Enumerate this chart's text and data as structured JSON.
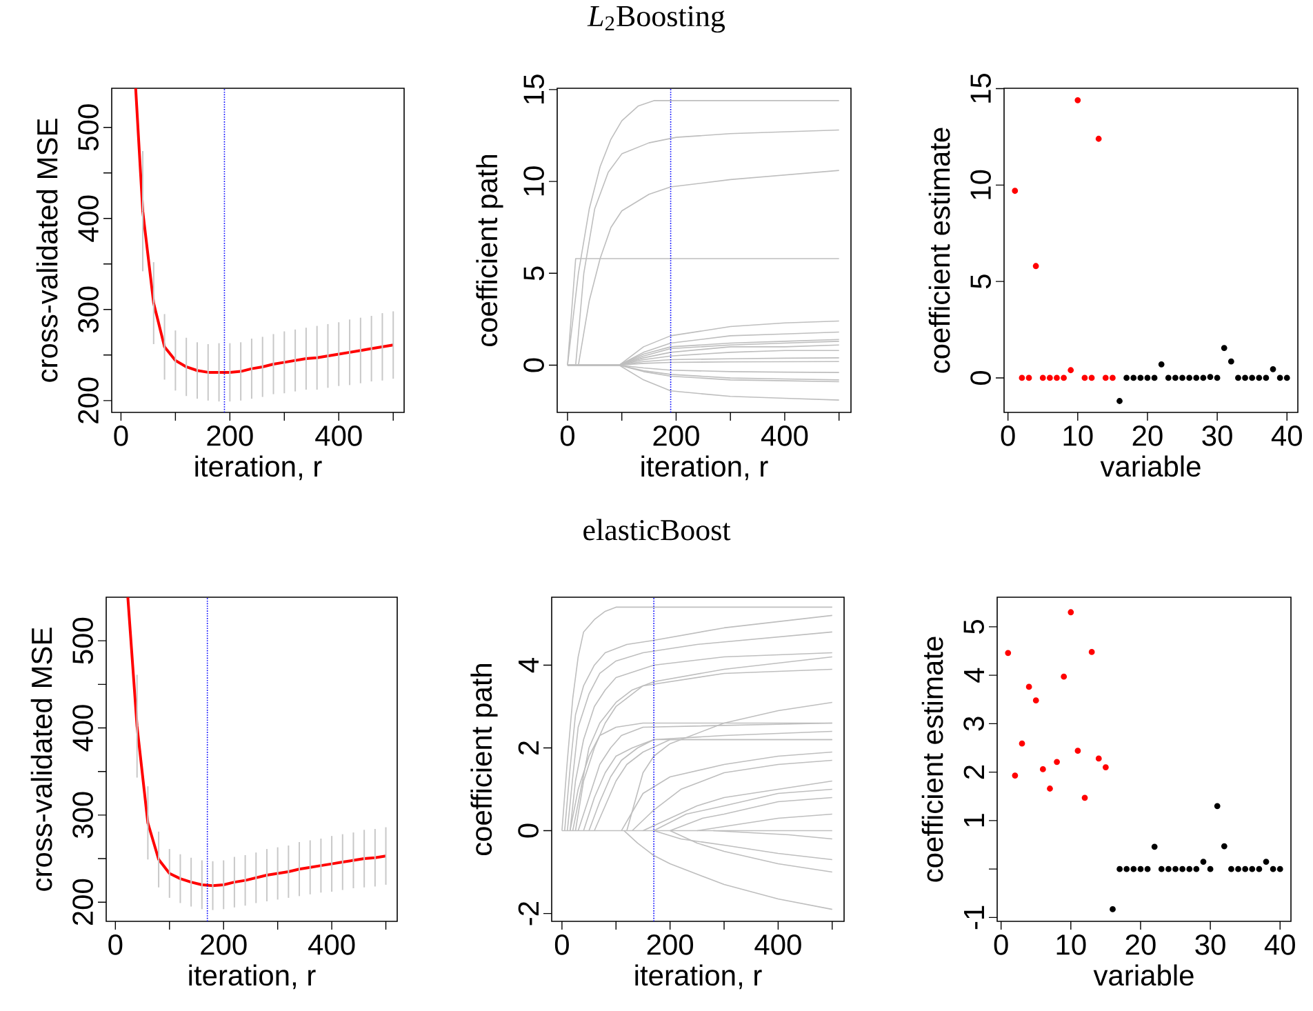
{
  "chart_data": [
    {
      "type": "line",
      "xlabel": "iteration, r",
      "ylabel": "cross-validated MSE",
      "xlim": [
        -17,
        520
      ],
      "ylim": [
        187,
        543
      ],
      "xticks": [
        0,
        {
          "value": 100,
          "label": null
        },
        200,
        {
          "value": 300,
          "label": null
        },
        400,
        {
          "value": 500,
          "label": null
        }
      ],
      "yticks": [
        200,
        {
          "value": 250,
          "label": null
        },
        300,
        {
          "value": 350,
          "label": null
        },
        400,
        {
          "value": 450,
          "label": null
        },
        500
      ],
      "series": [
        {
          "color": "#ff0000",
          "x": [
            27,
            40,
            60,
            80,
            100,
            120,
            140,
            160,
            180,
            200,
            220,
            240,
            260,
            280,
            300,
            320,
            340,
            360,
            380,
            400,
            420,
            440,
            460,
            480,
            500
          ],
          "values": [
            543,
            408,
            307,
            259,
            244,
            237,
            233,
            231,
            231,
            231,
            232,
            235,
            237,
            240,
            242,
            244,
            246,
            247,
            249,
            251,
            253,
            255,
            257,
            259,
            261
          ],
          "errors": [
            null,
            66,
            45,
            36,
            33,
            32,
            31,
            31,
            32,
            32,
            32,
            33,
            33,
            33,
            34,
            34,
            34,
            35,
            35,
            35,
            36,
            36,
            36,
            37,
            37
          ]
        }
      ],
      "ref_lines": [
        {
          "axis": "x",
          "value": 190,
          "color": "#0000ff",
          "line_style": "dotted"
        }
      ]
    },
    {
      "type": "line",
      "title": "*L*$_{2}$Boosting",
      "xlabel": "iteration, r",
      "ylabel": "coefficient path",
      "xlim": [
        -19,
        522
      ],
      "ylim": [
        -2.57,
        15.07
      ],
      "xticks": [
        0,
        {
          "value": 100,
          "label": null
        },
        200,
        {
          "value": 300,
          "label": null
        },
        400,
        {
          "value": 500,
          "label": null
        }
      ],
      "yticks": [
        0,
        5,
        10,
        15
      ],
      "series": [
        {
          "color": "#bebebe",
          "x": [
            0,
            20,
            40,
            60,
            80,
            100,
            130,
            160,
            500
          ],
          "values": [
            0,
            5,
            8.5,
            10.8,
            12.3,
            13.3,
            14.1,
            14.4,
            14.4
          ]
        },
        {
          "color": "#bebebe",
          "x": [
            15,
            30,
            50,
            75,
            100,
            150,
            200,
            300,
            500
          ],
          "values": [
            0,
            5,
            8.5,
            10.5,
            11.5,
            12.1,
            12.4,
            12.6,
            12.8
          ]
        },
        {
          "color": "#bebebe",
          "x": [
            20,
            40,
            60,
            80,
            100,
            150,
            190,
            300,
            500
          ],
          "values": [
            0,
            3.5,
            5.8,
            7.5,
            8.4,
            9.3,
            9.7,
            10.1,
            10.6
          ]
        },
        {
          "color": "#bebebe",
          "x": [
            0,
            15,
            500
          ],
          "values": [
            0,
            5.8,
            5.8
          ]
        },
        {
          "color": "#bebebe",
          "x": [
            0,
            95,
            140,
            190,
            300,
            400,
            500
          ],
          "values": [
            0,
            0,
            1.0,
            1.6,
            2.1,
            2.3,
            2.4
          ]
        },
        {
          "color": "#bebebe",
          "x": [
            0,
            95,
            140,
            190,
            300,
            400,
            500
          ],
          "values": [
            0,
            0,
            0.7,
            1.2,
            1.6,
            1.7,
            1.8
          ]
        },
        {
          "color": "#bebebe",
          "x": [
            0,
            95,
            140,
            190,
            300,
            400,
            500
          ],
          "values": [
            0,
            0,
            0.6,
            1.0,
            1.2,
            1.3,
            1.4
          ]
        },
        {
          "color": "#bebebe",
          "x": [
            0,
            95,
            140,
            190,
            300,
            400,
            500
          ],
          "values": [
            0,
            0,
            0.5,
            0.9,
            1.1,
            1.2,
            1.3
          ]
        },
        {
          "color": "#bebebe",
          "x": [
            0,
            95,
            140,
            190,
            300,
            400,
            500
          ],
          "values": [
            0,
            0,
            0.4,
            0.7,
            1.0,
            1.0,
            1.1
          ]
        },
        {
          "color": "#bebebe",
          "x": [
            0,
            95,
            140,
            190,
            300,
            400,
            500
          ],
          "values": [
            0,
            0,
            0.3,
            0.5,
            0.7,
            0.8,
            0.8
          ]
        },
        {
          "color": "#bebebe",
          "x": [
            0,
            95,
            140,
            190,
            300,
            400,
            500
          ],
          "values": [
            0,
            0,
            0.2,
            0.3,
            0.35,
            0.38,
            0.4
          ]
        },
        {
          "color": "#bebebe",
          "x": [
            0,
            95,
            140,
            190,
            300,
            400,
            500
          ],
          "values": [
            0,
            0,
            0.1,
            0.15,
            0.18,
            0.19,
            0.2
          ]
        },
        {
          "color": "#bebebe",
          "x": [
            0,
            95,
            140,
            190,
            300,
            400,
            500
          ],
          "values": [
            0,
            0,
            -0.15,
            -0.27,
            -0.35,
            -0.38,
            -0.4
          ]
        },
        {
          "color": "#bebebe",
          "x": [
            0,
            95,
            140,
            190,
            300,
            400,
            500
          ],
          "values": [
            0,
            0,
            -0.3,
            -0.5,
            -0.7,
            -0.75,
            -0.8
          ]
        },
        {
          "color": "#bebebe",
          "x": [
            0,
            95,
            140,
            190,
            300,
            400,
            500
          ],
          "values": [
            0,
            0,
            -0.35,
            -0.6,
            -0.8,
            -0.85,
            -0.9
          ]
        },
        {
          "color": "#bebebe",
          "x": [
            0,
            95,
            140,
            190,
            300,
            400,
            500
          ],
          "values": [
            0,
            0,
            -0.8,
            -1.4,
            -1.7,
            -1.8,
            -1.9
          ]
        }
      ],
      "ref_lines": [
        {
          "axis": "x",
          "value": 190,
          "color": "#0000ff",
          "line_style": "dotted"
        }
      ]
    },
    {
      "type": "scatter",
      "marker": "circle",
      "xlabel": "variable",
      "ylabel": "coefficient estimate",
      "xlim": [
        -0.56,
        41.56
      ],
      "ylim": [
        -1.79,
        15.02
      ],
      "xticks": [
        0,
        10,
        20,
        30,
        40
      ],
      "yticks": [
        0,
        5,
        10,
        15
      ],
      "series": [
        {
          "color": "#ff0000",
          "x": [
            1,
            2,
            3,
            4,
            5,
            6,
            7,
            8,
            9,
            10,
            11,
            12,
            13,
            14,
            15
          ],
          "values": [
            9.7,
            0,
            0,
            5.8,
            0,
            0,
            0,
            0,
            0.4,
            14.4,
            0,
            0,
            12.4,
            0,
            0
          ]
        },
        {
          "color": "#000000",
          "x": [
            16,
            17,
            18,
            19,
            20,
            21,
            22,
            23,
            24,
            25,
            26,
            27,
            28,
            29,
            30,
            31,
            32,
            33,
            34,
            35,
            36,
            37,
            38,
            39,
            40
          ],
          "values": [
            -1.2,
            0,
            0,
            0,
            0,
            0,
            0.7,
            0,
            0,
            0,
            0,
            0,
            0,
            0.05,
            0,
            1.55,
            0.85,
            0,
            0,
            0,
            0,
            0,
            0.45,
            0,
            0
          ]
        }
      ]
    },
    {
      "type": "line",
      "xlabel": "iteration, r",
      "ylabel": "cross-validated MSE",
      "xlim": [
        -17,
        521
      ],
      "ylim": [
        178,
        550
      ],
      "xticks": [
        0,
        {
          "value": 100,
          "label": null
        },
        200,
        {
          "value": 300,
          "label": null
        },
        400,
        {
          "value": 500,
          "label": null
        }
      ],
      "yticks": [
        200,
        {
          "value": 250,
          "label": null
        },
        300,
        {
          "value": 350,
          "label": null
        },
        400,
        {
          "value": 450,
          "label": null
        },
        500
      ],
      "series": [
        {
          "color": "#ff0000",
          "x": [
            23,
            40,
            60,
            80,
            100,
            120,
            140,
            160,
            180,
            200,
            220,
            240,
            260,
            280,
            300,
            320,
            340,
            360,
            380,
            400,
            420,
            440,
            460,
            480,
            500
          ],
          "values": [
            550,
            402,
            291,
            249,
            233,
            227,
            223,
            220,
            219,
            220,
            223,
            225,
            228,
            231,
            233,
            235,
            238,
            240,
            242,
            244,
            246,
            248,
            250,
            251,
            253
          ],
          "errors": [
            null,
            59,
            42,
            32,
            28,
            28,
            28,
            28,
            28,
            28,
            29,
            29,
            29,
            30,
            30,
            30,
            31,
            31,
            31,
            32,
            32,
            32,
            33,
            33,
            33
          ]
        }
      ],
      "ref_lines": [
        {
          "axis": "x",
          "value": 170,
          "color": "#0000ff",
          "line_style": "dotted"
        }
      ]
    },
    {
      "type": "line",
      "title": "elasticBoost",
      "xlabel": "iteration, r",
      "ylabel": "coefficient path",
      "xlim": [
        -19,
        522
      ],
      "ylim": [
        -2.19,
        5.64
      ],
      "xticks": [
        0,
        {
          "value": 100,
          "label": null
        },
        200,
        {
          "value": 300,
          "label": null
        },
        400,
        {
          "value": 500,
          "label": null
        }
      ],
      "yticks": [
        -2,
        0,
        2,
        4
      ],
      "series": [
        {
          "color": "#bebebe",
          "x": [
            0,
            500
          ],
          "values": [
            0,
            0
          ]
        },
        {
          "color": "#bebebe",
          "x": [
            0,
            10,
            20,
            30,
            40,
            60,
            80,
            100,
            500
          ],
          "values": [
            0,
            1.7,
            3.2,
            4.2,
            4.8,
            5.1,
            5.3,
            5.4,
            5.4
          ]
        },
        {
          "color": "#bebebe",
          "x": [
            5,
            15,
            25,
            40,
            60,
            80,
            120,
            170,
            300,
            500
          ],
          "values": [
            0,
            1.5,
            2.8,
            3.5,
            4.0,
            4.3,
            4.5,
            4.6,
            4.9,
            5.2
          ]
        },
        {
          "color": "#bebebe",
          "x": [
            10,
            20,
            30,
            50,
            70,
            100,
            150,
            250,
            500
          ],
          "values": [
            0,
            1.3,
            2.5,
            3.3,
            3.8,
            4.1,
            4.3,
            4.5,
            4.8
          ]
        },
        {
          "color": "#bebebe",
          "x": [
            15,
            25,
            40,
            60,
            80,
            100,
            170,
            300,
            500
          ],
          "values": [
            0,
            1.2,
            2.2,
            3.0,
            3.4,
            3.7,
            4.0,
            4.2,
            4.3
          ]
        },
        {
          "color": "#bebebe",
          "x": [
            20,
            35,
            50,
            70,
            100,
            130,
            170,
            300,
            500
          ],
          "values": [
            0,
            1.0,
            2.0,
            2.6,
            3.1,
            3.4,
            3.6,
            3.9,
            4.2
          ]
        },
        {
          "color": "#bebebe",
          "x": [
            25,
            40,
            60,
            80,
            100,
            150,
            300,
            500
          ],
          "values": [
            0,
            1.2,
            2.0,
            2.6,
            3.0,
            3.5,
            3.8,
            3.9
          ]
        },
        {
          "color": "#bebebe",
          "x": [
            120,
            150,
            170,
            200,
            300,
            400,
            500
          ],
          "values": [
            0,
            1.4,
            1.8,
            2.1,
            2.6,
            2.9,
            3.1
          ]
        },
        {
          "color": "#bebebe",
          "x": [
            15,
            30,
            50,
            70,
            100,
            150,
            500
          ],
          "values": [
            0,
            1.0,
            1.8,
            2.3,
            2.5,
            2.6,
            2.6
          ]
        },
        {
          "color": "#bebebe",
          "x": [
            30,
            50,
            70,
            90,
            110,
            150,
            500
          ],
          "values": [
            0,
            0.8,
            1.6,
            2.0,
            2.3,
            2.5,
            2.6
          ]
        },
        {
          "color": "#bebebe",
          "x": [
            40,
            60,
            80,
            100,
            130,
            170,
            300,
            500
          ],
          "values": [
            0,
            0.8,
            1.4,
            1.8,
            2.0,
            2.2,
            2.3,
            2.4
          ]
        },
        {
          "color": "#bebebe",
          "x": [
            50,
            70,
            90,
            110,
            140,
            170,
            500
          ],
          "values": [
            0,
            0.7,
            1.3,
            1.7,
            2.0,
            2.2,
            2.2
          ]
        },
        {
          "color": "#bebebe",
          "x": [
            60,
            80,
            100,
            120,
            150,
            200,
            500
          ],
          "values": [
            0,
            0.6,
            1.2,
            1.6,
            1.9,
            2.2,
            2.2
          ]
        },
        {
          "color": "#bebebe",
          "x": [
            110,
            150,
            200,
            300,
            400,
            500
          ],
          "values": [
            0,
            0.9,
            1.3,
            1.6,
            1.8,
            1.9
          ]
        },
        {
          "color": "#bebebe",
          "x": [
            130,
            170,
            220,
            300,
            400,
            500
          ],
          "values": [
            0,
            0.5,
            1.0,
            1.4,
            1.6,
            1.7
          ]
        },
        {
          "color": "#bebebe",
          "x": [
            150,
            200,
            250,
            300,
            400,
            500
          ],
          "values": [
            0,
            0.3,
            0.6,
            0.8,
            1.0,
            1.2
          ]
        },
        {
          "color": "#bebebe",
          "x": [
            170,
            230,
            300,
            400,
            500
          ],
          "values": [
            0,
            0.4,
            0.6,
            0.9,
            1.0
          ]
        },
        {
          "color": "#bebebe",
          "x": [
            200,
            260,
            300,
            400,
            500
          ],
          "values": [
            0,
            0.3,
            0.4,
            0.7,
            0.8
          ]
        },
        {
          "color": "#bebebe",
          "x": [
            250,
            300,
            400,
            500
          ],
          "values": [
            0,
            0.1,
            0.3,
            0.4
          ]
        },
        {
          "color": "#bebebe",
          "x": [
            280,
            350,
            420,
            500
          ],
          "values": [
            0,
            -0.05,
            -0.1,
            -0.2
          ]
        },
        {
          "color": "#bebebe",
          "x": [
            170,
            220,
            300,
            400,
            500
          ],
          "values": [
            0,
            -0.2,
            -0.35,
            -0.55,
            -0.7
          ]
        },
        {
          "color": "#bebebe",
          "x": [
            200,
            250,
            300,
            400,
            500
          ],
          "values": [
            0,
            -0.3,
            -0.5,
            -0.8,
            -1.0
          ]
        },
        {
          "color": "#bebebe",
          "x": [
            115,
            140,
            170,
            200,
            300,
            400,
            500
          ],
          "values": [
            0,
            -0.3,
            -0.6,
            -0.8,
            -1.3,
            -1.65,
            -1.9
          ]
        }
      ],
      "ref_lines": [
        {
          "axis": "x",
          "value": 170,
          "color": "#0000ff",
          "line_style": "dotted"
        }
      ]
    },
    {
      "type": "scatter",
      "marker": "circle",
      "xlabel": "variable",
      "ylabel": "coefficient estimate",
      "xlim": [
        -0.56,
        41.56
      ],
      "ylim": [
        -1.08,
        5.61
      ],
      "xticks": [
        0,
        10,
        20,
        30,
        40
      ],
      "yticks": [
        -1,
        {
          "value": 0,
          "label": null
        },
        1,
        2,
        3,
        4,
        5
      ],
      "series": [
        {
          "color": "#ff0000",
          "x": [
            1,
            2,
            3,
            4,
            5,
            6,
            7,
            8,
            9,
            10,
            11,
            12,
            13,
            14,
            15
          ],
          "values": [
            4.46,
            1.93,
            2.59,
            3.76,
            3.48,
            2.06,
            1.66,
            2.21,
            3.97,
            5.3,
            2.44,
            1.47,
            4.48,
            2.28,
            2.1
          ]
        },
        {
          "color": "#000000",
          "x": [
            16,
            17,
            18,
            19,
            20,
            21,
            22,
            23,
            24,
            25,
            26,
            27,
            28,
            29,
            30,
            31,
            32,
            33,
            34,
            35,
            36,
            37,
            38,
            39,
            40
          ],
          "values": [
            -0.83,
            0,
            0,
            0,
            0,
            0,
            0.46,
            0,
            0,
            0,
            0,
            0,
            0,
            0.15,
            0,
            1.3,
            0.47,
            0,
            0,
            0,
            0,
            0,
            0.15,
            0,
            0
          ]
        }
      ]
    }
  ]
}
